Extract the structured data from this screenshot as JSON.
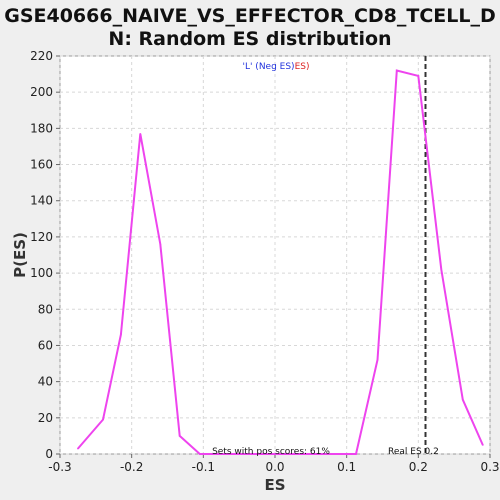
{
  "title_line1": "GSE40666_NAIVE_VS_EFFECTOR_CD8_TCELL_D",
  "title_line2": "N: Random ES distribution",
  "chart_data": {
    "type": "line",
    "xlabel": "ES",
    "ylabel": "P(ES)",
    "xlim": [
      -0.3,
      0.3
    ],
    "ylim": [
      0,
      220
    ],
    "x_ticks": [
      "-0.3",
      "-0.2",
      "-0.1",
      "0.0",
      "0.1",
      "0.2",
      "0.3"
    ],
    "y_ticks": [
      "0",
      "20",
      "40",
      "60",
      "80",
      "100",
      "120",
      "140",
      "160",
      "180",
      "200",
      "220"
    ],
    "grid": true,
    "line_color": "#ee44ee",
    "series": [
      {
        "x": [
          -0.275,
          -0.24,
          -0.215,
          -0.188,
          -0.16,
          -0.133,
          -0.105,
          -0.08,
          -0.05,
          -0.02,
          0.01,
          0.04,
          0.07,
          0.113,
          0.143,
          0.17,
          0.2,
          0.232,
          0.262,
          0.29
        ],
        "values": [
          3,
          19,
          66,
          177,
          116,
          10,
          0,
          0,
          0,
          0,
          0,
          0,
          0,
          0,
          52,
          212,
          209,
          102,
          30,
          5
        ]
      }
    ],
    "real_es": 0.21,
    "legend_neg": "'L' (Neg ES)",
    "legend_pos": "ES)",
    "annotation_pos": "Sets with pos scores: 61%",
    "annotation_real": "Real ES 0.2",
    "colors": {
      "neg": "#2233dd",
      "pos": "#dd2222",
      "grid": "#d8d8d8",
      "dashed": "#333333"
    }
  }
}
